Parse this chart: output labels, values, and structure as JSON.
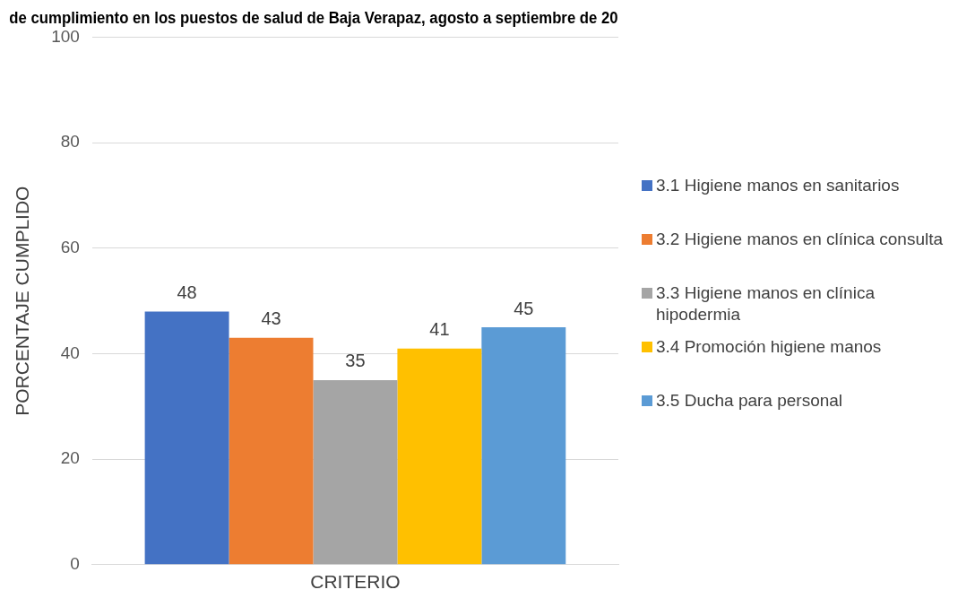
{
  "chart_data": {
    "type": "bar",
    "title": "de cumplimiento en los puestos de salud de Baja Verapaz, agosto a septiembre de 20",
    "ylabel": "PORCENTAJE CUMPLIDO",
    "categories": [
      "CRITERIO"
    ],
    "series": [
      {
        "name": "3.1 Higiene manos en sanitarios",
        "color": "#4472c4",
        "values": [
          48
        ]
      },
      {
        "name": "3.2 Higiene manos en clínica consulta",
        "color": "#ed7d31",
        "values": [
          43
        ]
      },
      {
        "name": "3.3 Higiene manos en clínica hipodermia",
        "color": "#a5a5a5",
        "values": [
          35
        ]
      },
      {
        "name": "3.4 Promoción higiene manos",
        "color": "#ffc000",
        "values": [
          41
        ]
      },
      {
        "name": "3.5 Ducha para personal",
        "color": "#5b9bd5",
        "values": [
          45
        ]
      }
    ],
    "ylim": [
      0,
      100
    ],
    "yticks": [
      0,
      20,
      40,
      60,
      80,
      100
    ],
    "grid": "y",
    "legend": "right",
    "data_labels": true
  }
}
